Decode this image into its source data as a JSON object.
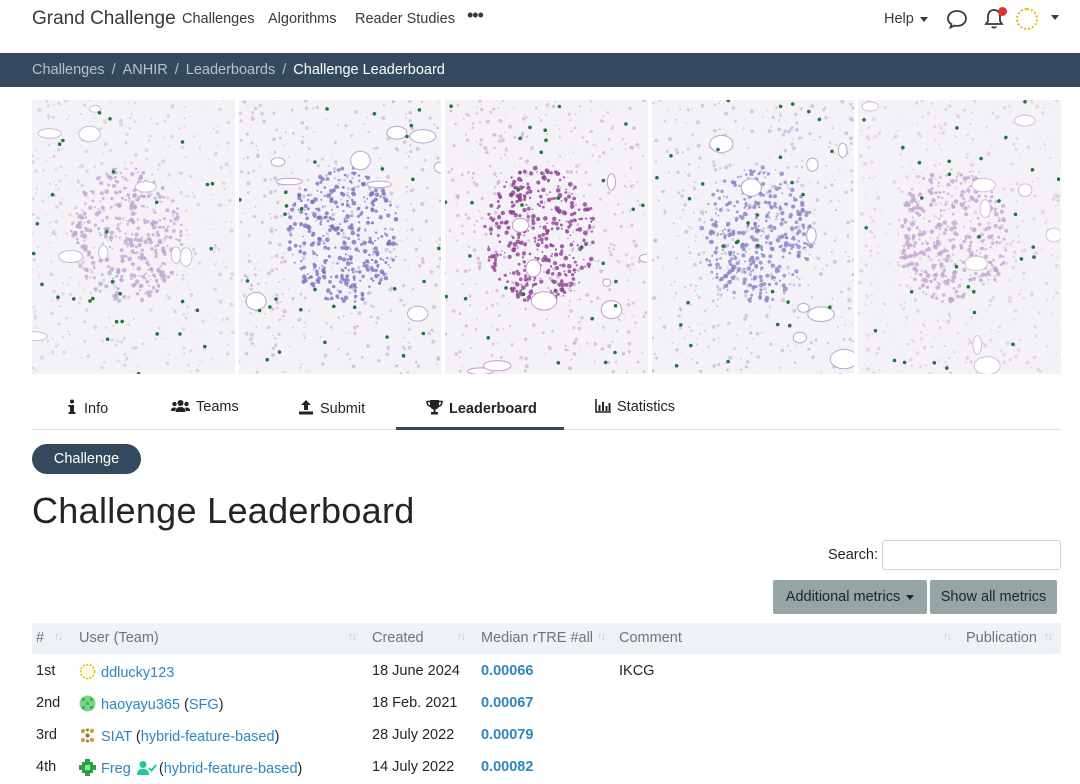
{
  "navbar": {
    "brand": "Grand Challenge",
    "links": [
      "Challenges",
      "Algorithms",
      "Reader Studies"
    ],
    "more": "•••",
    "help": "Help"
  },
  "breadcrumb": [
    "Challenges",
    "ANHIR",
    "Leaderboards",
    "Challenge Leaderboard"
  ],
  "tabs": [
    {
      "label": "Info",
      "icon": "info-icon"
    },
    {
      "label": "Teams",
      "icon": "users-icon"
    },
    {
      "label": "Submit",
      "icon": "upload-icon"
    },
    {
      "label": "Leaderboard",
      "icon": "trophy-icon",
      "active": true
    },
    {
      "label": "Statistics",
      "icon": "chart-icon"
    }
  ],
  "phase_pill": "Challenge",
  "page_title": "Challenge Leaderboard",
  "search": {
    "label": "Search:",
    "value": ""
  },
  "buttons": {
    "additional_metrics": "Additional metrics",
    "show_all": "Show all metrics"
  },
  "table": {
    "columns": [
      "#",
      "User (Team)",
      "Created",
      "Median rTRE #all",
      "Comment",
      "Publication"
    ],
    "rows": [
      {
        "rank": "1st",
        "user": "ddlucky123",
        "team": "",
        "created": "18 June 2024",
        "metric": "0.00066",
        "comment": "IKCG",
        "publication": ""
      },
      {
        "rank": "2nd",
        "user": "haoyayu365",
        "team": "SFG",
        "created": "18 Feb. 2021",
        "metric": "0.00067",
        "comment": "",
        "publication": ""
      },
      {
        "rank": "3rd",
        "user": "SIAT",
        "team": "hybrid-feature-based",
        "created": "28 July 2022",
        "metric": "0.00079",
        "comment": "",
        "publication": ""
      },
      {
        "rank": "4th",
        "user": "Freg",
        "team": "hybrid-feature-based",
        "created": "14 July 2022",
        "metric": "0.00082",
        "comment": "",
        "publication": ""
      }
    ]
  },
  "colors": {
    "navy": "#34495e",
    "link": "#2e86c1",
    "button_gray": "#95a5a6",
    "header_bg": "#eef2f5"
  }
}
